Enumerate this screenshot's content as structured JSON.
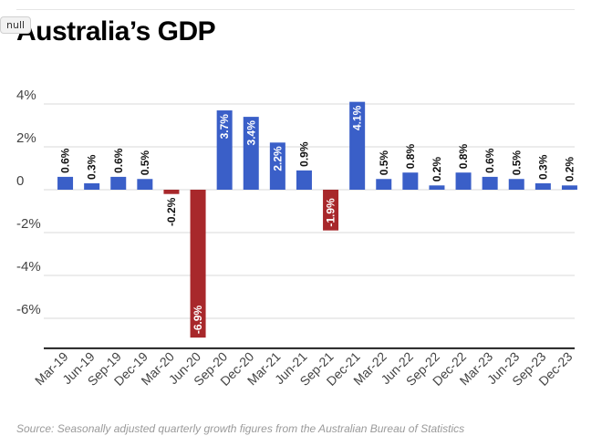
{
  "badge": "null",
  "colors": {
    "positive": "#3a5fc8",
    "negative": "#a8282b",
    "grid": "#d9d9d9",
    "axis": "#222222"
  },
  "chart_data": {
    "type": "bar",
    "title": "Australia’s GDP",
    "source": "Source: Seasonally adjusted quarterly growth figures from the Australian Bureau of Statistics",
    "categories": [
      "Mar-19",
      "Jun-19",
      "Sep-19",
      "Dec-19",
      "Mar-20",
      "Jun-20",
      "Sep-20",
      "Dec-20",
      "Mar-21",
      "Jun-21",
      "Sep-21",
      "Dec-21",
      "Mar-22",
      "Jun-22",
      "Sep-22",
      "Dec-22",
      "Mar-23",
      "Jun-23",
      "Sep-23",
      "Dec-23"
    ],
    "values": [
      0.6,
      0.3,
      0.6,
      0.5,
      -0.2,
      -6.9,
      3.7,
      3.4,
      2.2,
      0.9,
      -1.9,
      4.1,
      0.5,
      0.8,
      0.2,
      0.8,
      0.6,
      0.5,
      0.3,
      0.2
    ],
    "data_labels": [
      "0.6%",
      "0.3%",
      "0.6%",
      "0.5%",
      "-0.2%",
      "-6.9%",
      "3.7%",
      "3.4%",
      "2.2%",
      "0.9%",
      "-1.9%",
      "4.1%",
      "0.5%",
      "0.8%",
      "0.2%",
      "0.8%",
      "0.6%",
      "0.5%",
      "0.3%",
      "0.2%"
    ],
    "yticks": [
      4,
      2,
      0,
      -2,
      -4,
      -6
    ],
    "ytick_labels": [
      "4%",
      "2%",
      "0",
      "-2%",
      "-4%",
      "-6%"
    ],
    "ylim": [
      -7.4,
      4.6
    ],
    "xlabel": "",
    "ylabel": "",
    "grid": true,
    "legend": "none"
  }
}
